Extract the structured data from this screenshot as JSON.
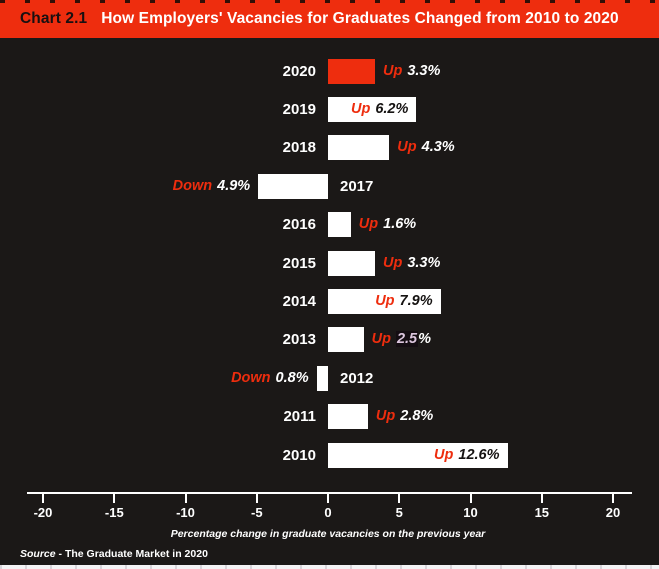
{
  "header": {
    "chart_number": "Chart 2.1",
    "title": "How Employers' Vacancies for Graduates Changed from 2010 to 2020"
  },
  "colors": {
    "accent_red": "#ee2d0e",
    "background": "#1b1817",
    "bar_white": "#ffffff",
    "inside_text": "#161312",
    "highlight_lavender": "#dcc6de"
  },
  "chart_data": {
    "type": "bar",
    "orientation": "horizontal",
    "title": "How Employers' Vacancies for Graduates Changed from 2010 to 2020",
    "xlabel": "Percentage change in graduate vacancies on the previous year",
    "xlim": [
      -20,
      20
    ],
    "grid": false,
    "categories": [
      "2020",
      "2019",
      "2018",
      "2017",
      "2016",
      "2015",
      "2014",
      "2013",
      "2012",
      "2011",
      "2010"
    ],
    "values": [
      3.3,
      6.2,
      4.3,
      -4.9,
      1.6,
      3.3,
      7.9,
      2.5,
      -0.8,
      2.8,
      12.6
    ],
    "bars": [
      {
        "year": "2020",
        "value": 3.3,
        "direction": "Up",
        "label": "3.3%",
        "inside": false,
        "bar_color": "red",
        "highlight": false
      },
      {
        "year": "2019",
        "value": 6.2,
        "direction": "Up",
        "label": "6.2%",
        "inside": true,
        "bar_color": "white",
        "highlight": false
      },
      {
        "year": "2018",
        "value": 4.3,
        "direction": "Up",
        "label": "4.3%",
        "inside": false,
        "bar_color": "white",
        "highlight": false
      },
      {
        "year": "2017",
        "value": -4.9,
        "direction": "Down",
        "label": "4.9%",
        "inside": false,
        "bar_color": "white",
        "highlight": false
      },
      {
        "year": "2016",
        "value": 1.6,
        "direction": "Up",
        "label": "1.6%",
        "inside": false,
        "bar_color": "white",
        "highlight": false
      },
      {
        "year": "2015",
        "value": 3.3,
        "direction": "Up",
        "label": "3.3%",
        "inside": false,
        "bar_color": "white",
        "highlight": false
      },
      {
        "year": "2014",
        "value": 7.9,
        "direction": "Up",
        "label": "7.9%",
        "inside": true,
        "bar_color": "white",
        "highlight": false
      },
      {
        "year": "2013",
        "value": 2.5,
        "direction": "Up",
        "label": "2.5%",
        "inside": false,
        "bar_color": "white",
        "highlight": true
      },
      {
        "year": "2012",
        "value": -0.8,
        "direction": "Down",
        "label": "0.8%",
        "inside": false,
        "bar_color": "white",
        "highlight": false
      },
      {
        "year": "2011",
        "value": 2.8,
        "direction": "Up",
        "label": "2.8%",
        "inside": false,
        "bar_color": "white",
        "highlight": false
      },
      {
        "year": "2010",
        "value": 12.6,
        "direction": "Up",
        "label": "12.6%",
        "inside": true,
        "bar_color": "white",
        "highlight": false
      }
    ],
    "axis": {
      "ticks": [
        -20,
        -15,
        -10,
        -5,
        0,
        5,
        10,
        15,
        20
      ],
      "label": "Percentage change in graduate vacancies on the previous year",
      "legend": "none"
    }
  },
  "source": {
    "prefix": "Source",
    "suffix": " - The Graduate Market in 2020"
  }
}
